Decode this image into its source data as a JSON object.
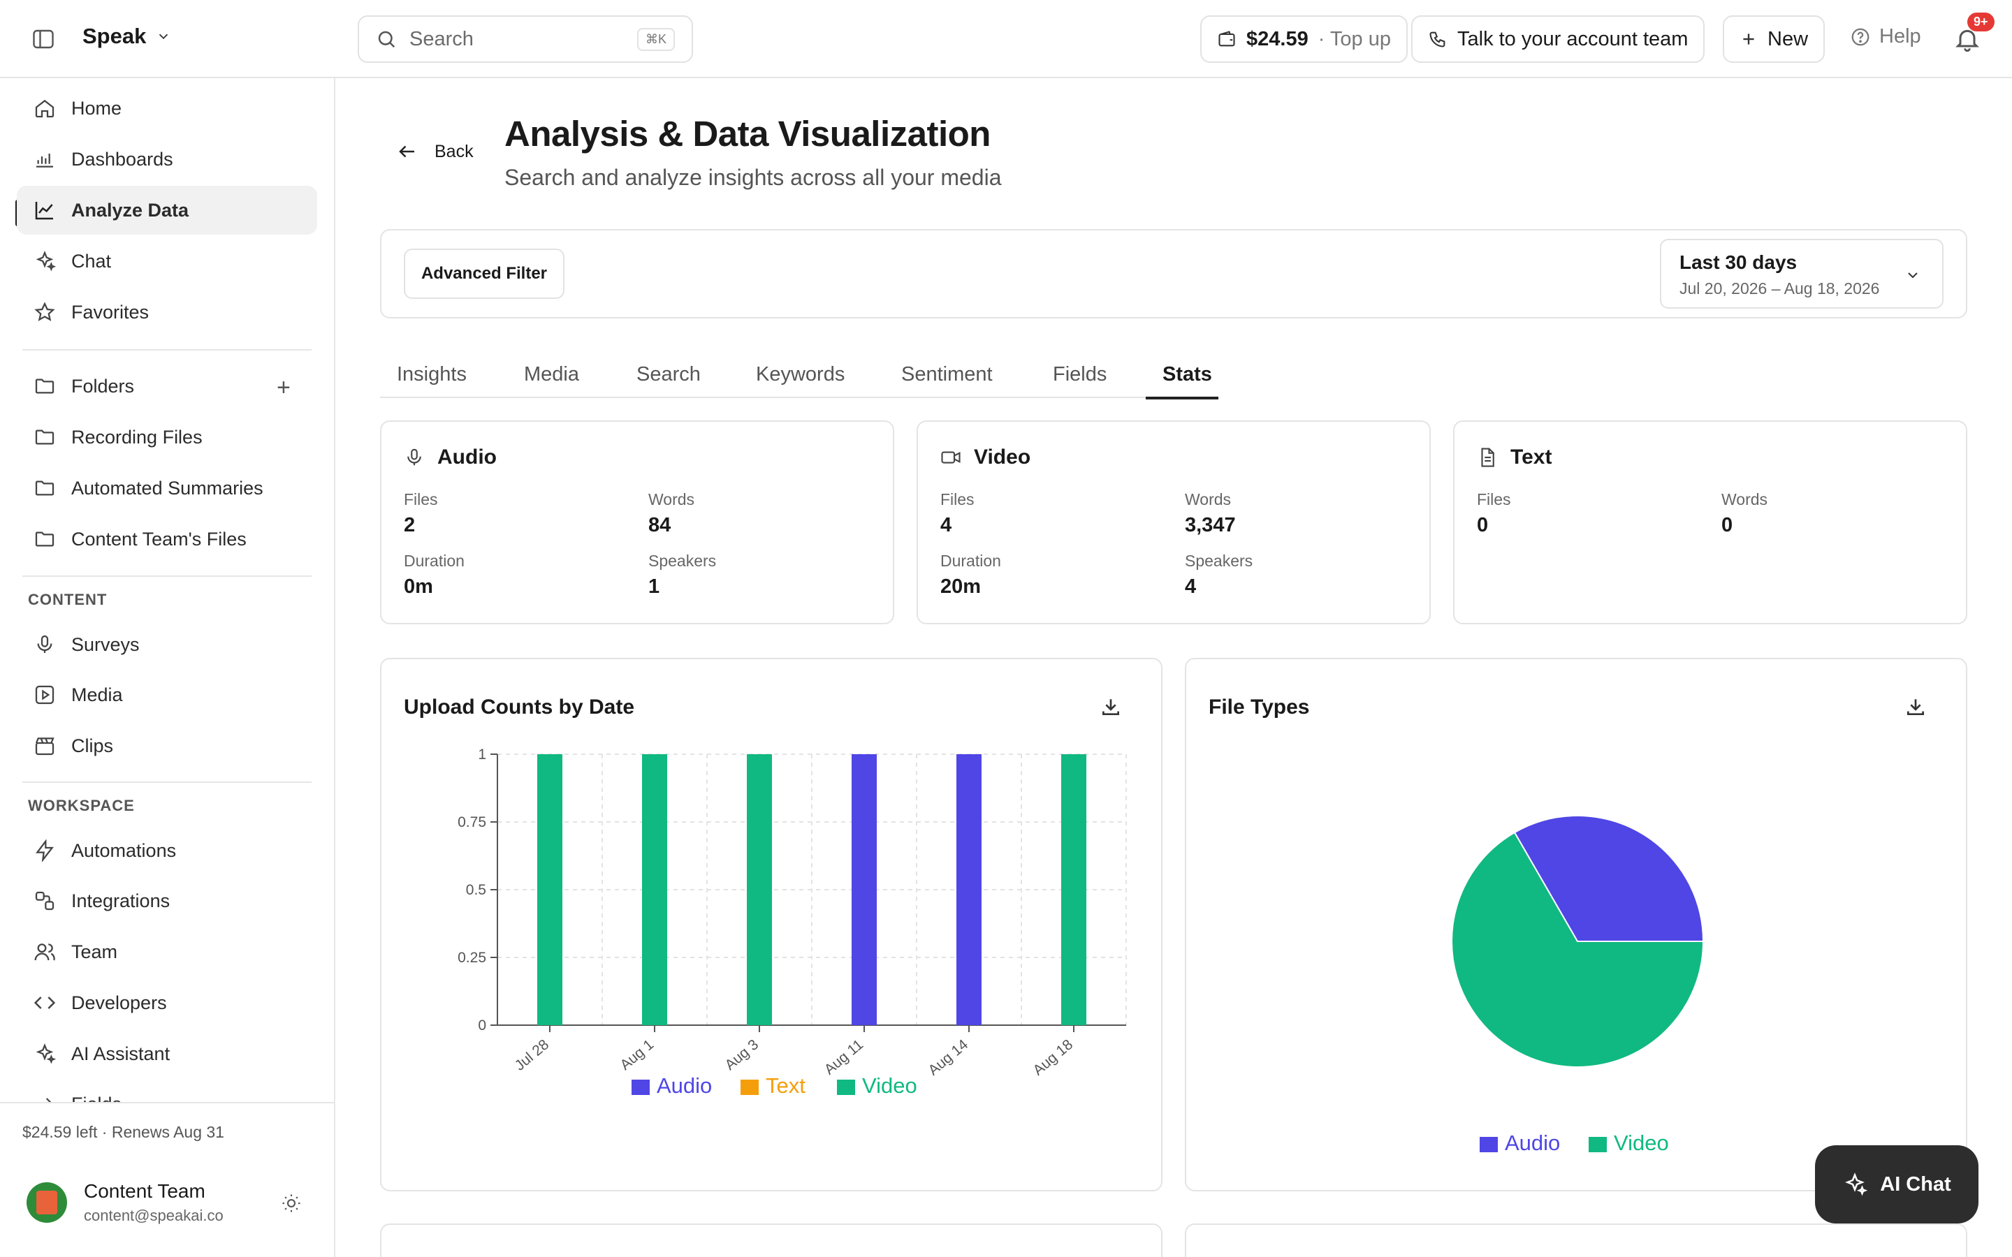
{
  "app": {
    "name": "Speak"
  },
  "search": {
    "placeholder": "Search",
    "shortcut": "⌘K"
  },
  "topbar": {
    "balance": "$24.59",
    "topup": "· Top up",
    "talk": "Talk to your account team",
    "new": "New",
    "help": "Help",
    "notifications": "9+"
  },
  "sidebar": {
    "primary": [
      "Home",
      "Dashboards",
      "Analyze Data",
      "Chat",
      "Favorites"
    ],
    "folders_label": "Folders",
    "folders": [
      "Recording Files",
      "Automated Summaries",
      "Content Team's Files"
    ],
    "content_label": "CONTENT",
    "content": [
      "Surveys",
      "Media",
      "Clips"
    ],
    "workspace_label": "WORKSPACE",
    "workspace": [
      "Automations",
      "Integrations",
      "Team",
      "Developers",
      "AI Assistant",
      "Fields"
    ],
    "balance_text": "$24.59 left · Renews Aug 31",
    "user_name": "Content Team",
    "user_email": "content@speakai.co"
  },
  "page": {
    "back": "Back",
    "title": "Analysis & Data Visualization",
    "subtitle": "Search and analyze insights across all your media",
    "advanced_filter": "Advanced Filter",
    "date_label": "Last 30 days",
    "date_range": "Jul 20, 2026 – Aug 18, 2026",
    "tabs": [
      "Insights",
      "Media",
      "Search",
      "Keywords",
      "Sentiment",
      "Fields",
      "Stats"
    ]
  },
  "stats": {
    "audio": {
      "title": "Audio",
      "files_label": "Files",
      "files": "2",
      "words_label": "Words",
      "words": "84",
      "duration_label": "Duration",
      "duration": "0m",
      "speakers_label": "Speakers",
      "speakers": "1"
    },
    "video": {
      "title": "Video",
      "files_label": "Files",
      "files": "4",
      "words_label": "Words",
      "words": "3,347",
      "duration_label": "Duration",
      "duration": "20m",
      "speakers_label": "Speakers",
      "speakers": "4"
    },
    "text": {
      "title": "Text",
      "files_label": "Files",
      "files": "0",
      "words_label": "Words",
      "words": "0"
    }
  },
  "colors": {
    "audio": "#4f46e5",
    "text": "#f59e0b",
    "video": "#10b981"
  },
  "chart_data": [
    {
      "type": "bar",
      "title": "Upload Counts by Date",
      "xlabel": "",
      "ylabel": "",
      "ylim": [
        0,
        1
      ],
      "yticks": [
        "0",
        "0.25",
        "0.5",
        "0.75",
        "1"
      ],
      "categories": [
        "Jul 28",
        "Aug 1",
        "Aug 3",
        "Aug 11",
        "Aug 14",
        "Aug 18"
      ],
      "series": [
        {
          "name": "Audio",
          "values": [
            0,
            0,
            0,
            1,
            1,
            0
          ]
        },
        {
          "name": "Text",
          "values": [
            0,
            0,
            0,
            0,
            0,
            0
          ]
        },
        {
          "name": "Video",
          "values": [
            1,
            1,
            1,
            0,
            0,
            1
          ]
        }
      ],
      "grid": true,
      "legend": "bottom"
    },
    {
      "type": "pie",
      "title": "File Types",
      "labels": [
        "Audio",
        "Video"
      ],
      "values": [
        2,
        4
      ],
      "legend": "bottom"
    }
  ],
  "ai_chat": "AI Chat"
}
